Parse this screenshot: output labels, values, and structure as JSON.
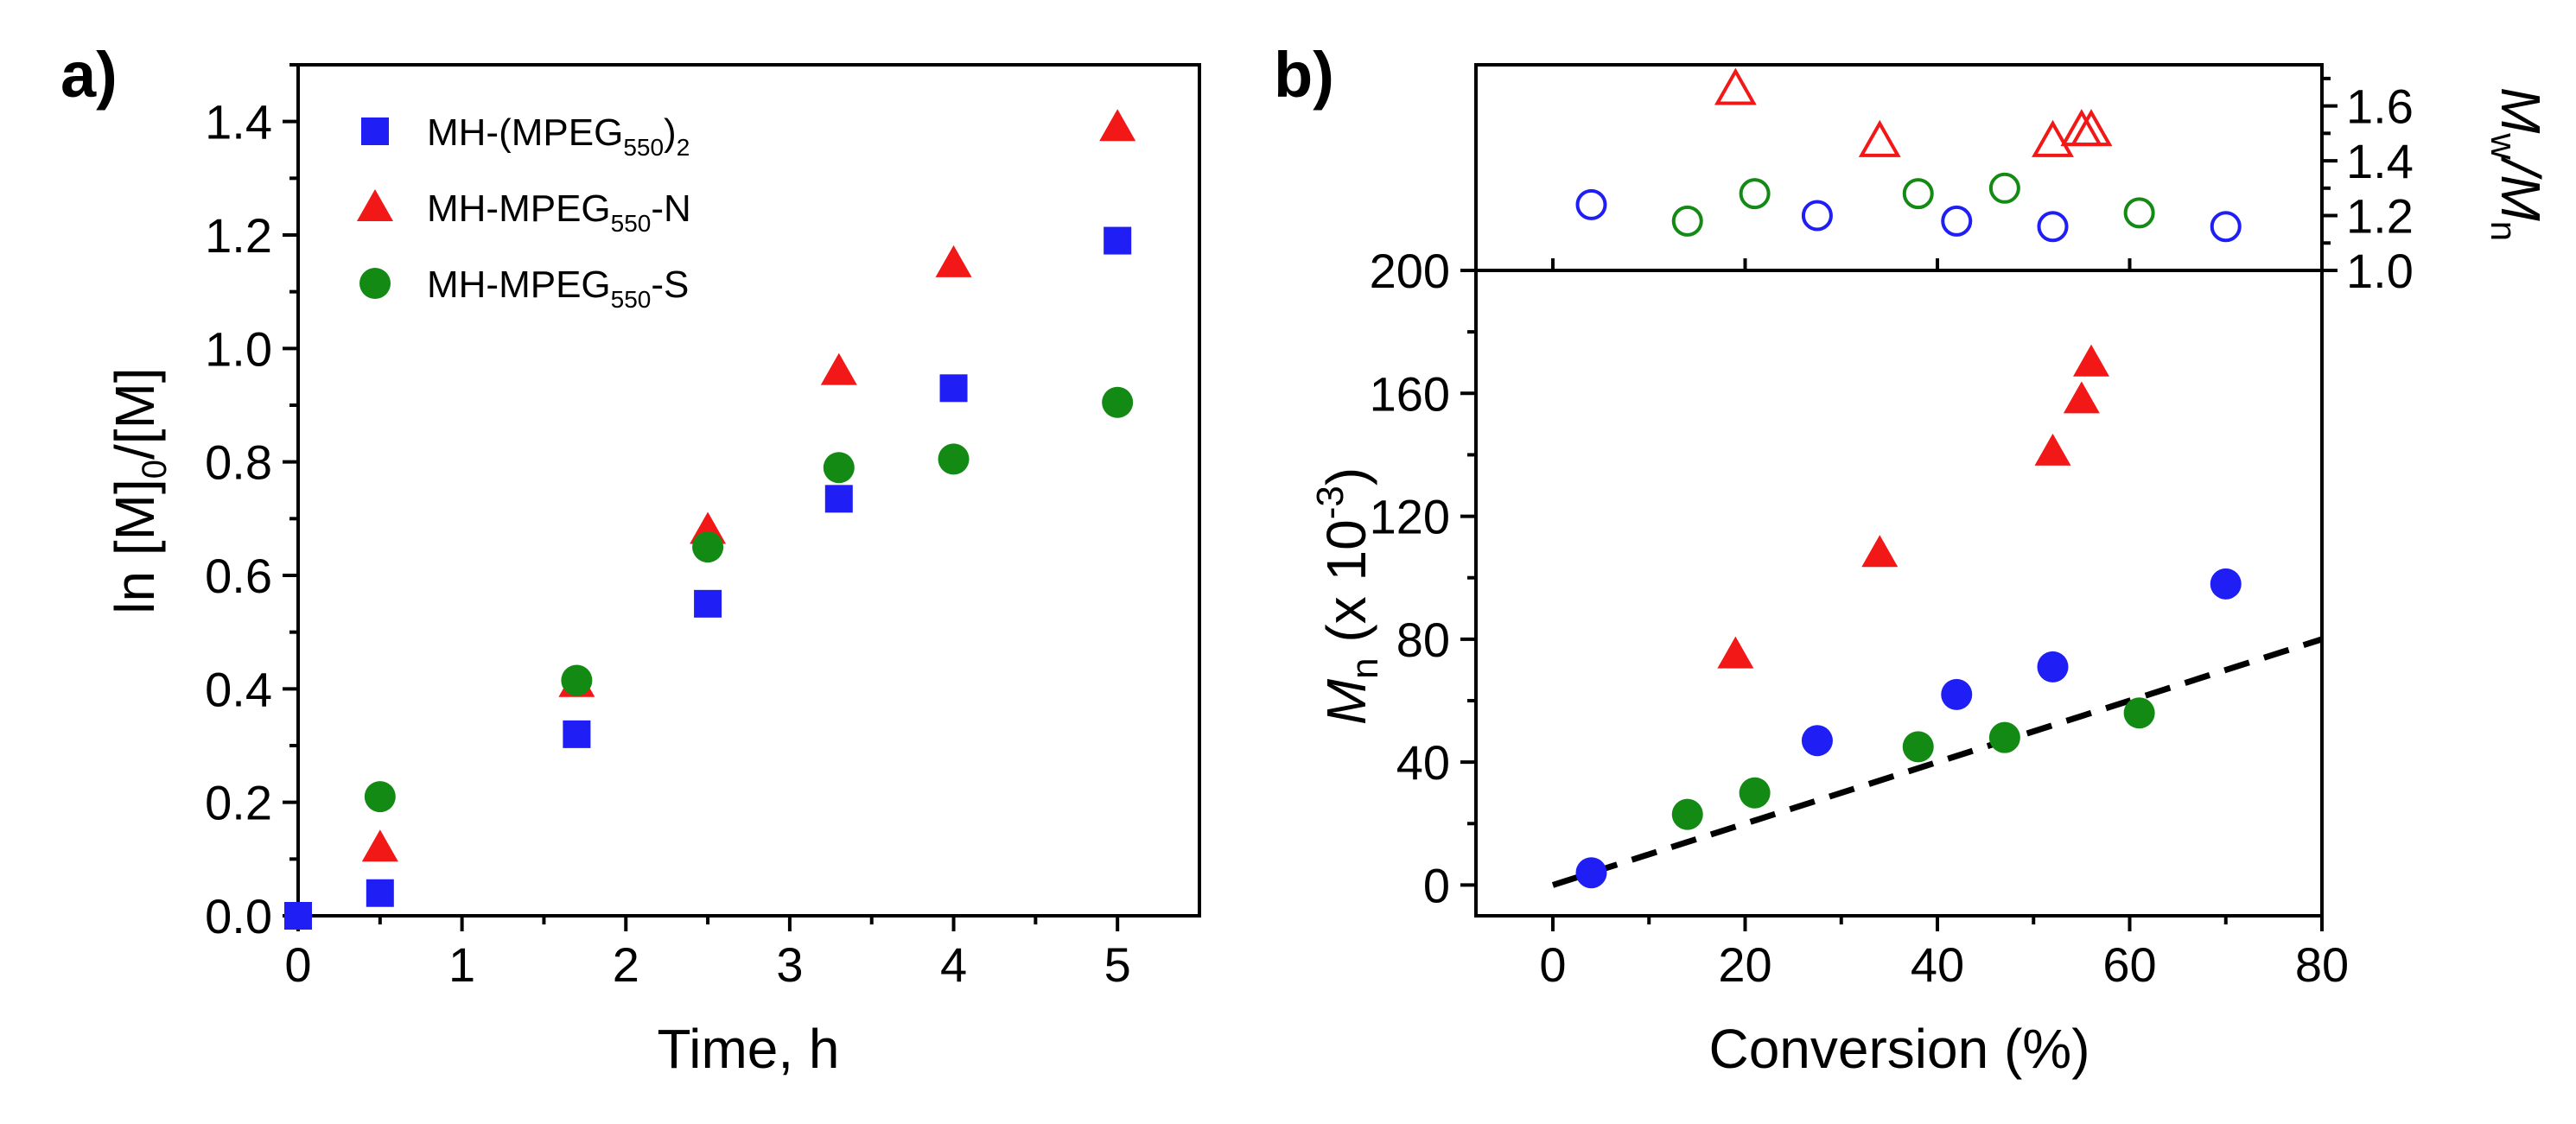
{
  "chart_data": [
    {
      "panel_label": "a)",
      "type": "scatter",
      "xlabel": "Time, h",
      "ylabel": {
        "pre": "ln [M]",
        "sub": "0",
        "post": "/[M]"
      },
      "xlim": [
        0,
        5.5
      ],
      "ylim": [
        0,
        1.5
      ],
      "xticks": [
        0,
        1,
        2,
        3,
        4,
        5
      ],
      "yticks": [
        0.0,
        0.2,
        0.4,
        0.6,
        0.8,
        1.0,
        1.2,
        1.4
      ],
      "xtick_labels": [
        "0",
        "1",
        "2",
        "3",
        "4",
        "5"
      ],
      "ytick_labels": [
        "0.0",
        "0.2",
        "0.4",
        "0.6",
        "0.8",
        "1.0",
        "1.2",
        "1.4"
      ],
      "legend_position": "top-left",
      "series": [
        {
          "name": "MH-(MPEG550)2",
          "legend_parts": [
            [
              "MH-(MPEG",
              "n"
            ],
            [
              "550",
              "sub"
            ],
            [
              ")",
              "n"
            ],
            [
              "2",
              "sub"
            ]
          ],
          "marker": "square",
          "color": "#1f1ff5",
          "filled": true,
          "x": [
            0,
            0.5,
            1.7,
            2.5,
            3.3,
            4.0,
            5.0
          ],
          "y": [
            0.0,
            0.04,
            0.32,
            0.55,
            0.735,
            0.93,
            1.19
          ]
        },
        {
          "name": "MH-MPEG550-N",
          "legend_parts": [
            [
              "MH-MPEG",
              "n"
            ],
            [
              "550",
              "sub"
            ],
            [
              "-N",
              "n"
            ]
          ],
          "marker": "triangle",
          "color": "#f21818",
          "filled": true,
          "x": [
            0.5,
            1.7,
            2.5,
            3.3,
            4.0,
            5.0
          ],
          "y": [
            0.12,
            0.41,
            0.68,
            0.96,
            1.15,
            1.39
          ]
        },
        {
          "name": "MH-MPEG550-S",
          "legend_parts": [
            [
              "MH-MPEG",
              "n"
            ],
            [
              "550",
              "sub"
            ],
            [
              "-S",
              "n"
            ]
          ],
          "marker": "circle",
          "color": "#138a13",
          "filled": true,
          "x": [
            0.5,
            1.7,
            2.5,
            3.3,
            4.0,
            5.0
          ],
          "y": [
            0.21,
            0.415,
            0.65,
            0.79,
            0.805,
            0.905
          ]
        }
      ]
    },
    {
      "panel_label": "b)",
      "type": "scatter",
      "xlabel": "Conversion (%)",
      "xlim": [
        -8,
        80
      ],
      "xticks": [
        0,
        20,
        40,
        60,
        80
      ],
      "xtick_labels": [
        "0",
        "20",
        "40",
        "60",
        "80"
      ],
      "top_panel": {
        "ylabel": {
          "pre": "M",
          "sub1": "w",
          "mid": "/M",
          "sub2": "n"
        },
        "ylim": [
          1.0,
          1.75
        ],
        "yticks": [
          1.0,
          1.2,
          1.4,
          1.6
        ],
        "ytick_labels": [
          "1.0",
          "1.2",
          "1.4",
          "1.6"
        ],
        "axis_side": "right",
        "series": [
          {
            "name": "Dispersity (red open triangles)",
            "marker": "triangle",
            "color": "#f21818",
            "filled": false,
            "x": [
              19,
              34,
              52,
              55,
              56
            ],
            "y": [
              1.66,
              1.47,
              1.47,
              1.51,
              1.51
            ]
          },
          {
            "name": "Dispersity (blue open circles)",
            "marker": "circle",
            "color": "#1f1ff5",
            "filled": false,
            "x": [
              4,
              27.5,
              42,
              52,
              70
            ],
            "y": [
              1.24,
              1.2,
              1.18,
              1.16,
              1.16
            ]
          },
          {
            "name": "Dispersity (green open circles)",
            "marker": "circle",
            "color": "#138a13",
            "filled": false,
            "x": [
              14,
              21,
              38,
              47,
              61
            ],
            "y": [
              1.18,
              1.28,
              1.28,
              1.3,
              1.21
            ]
          }
        ]
      },
      "bottom_panel": {
        "ylabel": {
          "main": "M",
          "sub": "n",
          "rest": " (x 10",
          "sup": "-3",
          "close": ")"
        },
        "ylim": [
          -10,
          200
        ],
        "yticks": [
          0,
          40,
          80,
          120,
          160,
          200
        ],
        "ytick_labels": [
          "0",
          "40",
          "80",
          "120",
          "160",
          "200"
        ],
        "series": [
          {
            "name": "Mn (red triangles)",
            "marker": "triangle",
            "color": "#f21818",
            "filled": true,
            "x": [
              19,
              34,
              52,
              55,
              56
            ],
            "y": [
              75,
              108,
              141,
              158,
              170
            ]
          },
          {
            "name": "Mn (blue circles)",
            "marker": "circle",
            "color": "#1f1ff5",
            "filled": true,
            "x": [
              4,
              27.5,
              42,
              52,
              70
            ],
            "y": [
              4,
              47,
              62,
              71,
              98
            ]
          },
          {
            "name": "Mn (green circles)",
            "marker": "circle",
            "color": "#138a13",
            "filled": true,
            "x": [
              14,
              21,
              38,
              47,
              61
            ],
            "y": [
              23,
              30,
              45,
              48,
              56
            ]
          },
          {
            "name": "Theoretical Mn",
            "type": "line",
            "style": "dashed",
            "color": "#000000",
            "x": [
              0,
              80
            ],
            "y": [
              0,
              80
            ]
          }
        ]
      }
    }
  ]
}
